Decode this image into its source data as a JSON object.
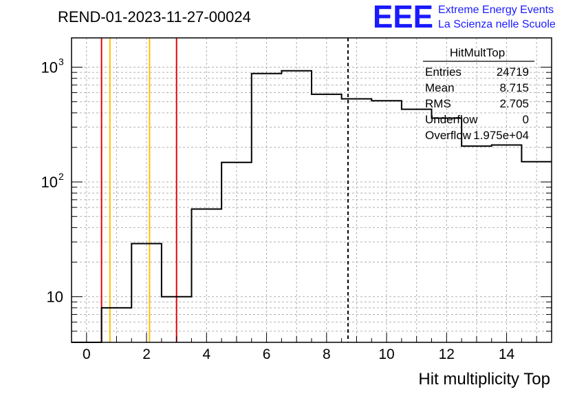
{
  "header": {
    "title": "REND-01-2023-11-27-00024",
    "logo_text": "EEE",
    "logo_line1": "Extreme Energy Events",
    "logo_line2": "La Scienza nelle Scuole"
  },
  "stats_box": {
    "name": "HitMultTop",
    "rows": [
      {
        "label": "Entries",
        "value": "24719"
      },
      {
        "label": "Mean",
        "value": "8.715"
      },
      {
        "label": "RMS",
        "value": "2.705"
      },
      {
        "label": "Underflow",
        "value": "0"
      },
      {
        "label": "Overflow",
        "value": "1.975e+04"
      }
    ]
  },
  "chart_data": {
    "type": "histogram",
    "title": "REND-01-2023-11-27-00024",
    "xlabel": "Hit multiplicity Top",
    "ylabel": "",
    "xlim": [
      -0.5,
      15.5
    ],
    "ylim": [
      4,
      1800
    ],
    "log_y": true,
    "grid": true,
    "bin_edges": [
      -0.5,
      0.5,
      1.5,
      2.5,
      3.5,
      4.5,
      5.5,
      6.5,
      7.5,
      8.5,
      9.5,
      10.5,
      11.5,
      12.5,
      13.5,
      14.5,
      15.5
    ],
    "values": [
      0,
      8,
      29,
      10,
      58,
      148,
      880,
      930,
      580,
      530,
      510,
      430,
      360,
      205,
      210,
      150
    ],
    "x_ticks": [
      0,
      2,
      4,
      6,
      8,
      10,
      12,
      14
    ],
    "x_tick_labels": [
      "0",
      "2",
      "4",
      "6",
      "8",
      "10",
      "12",
      "14"
    ],
    "y_ticks": [
      10,
      100,
      1000
    ],
    "y_tick_labels": [
      {
        "base": "10",
        "exp": ""
      },
      {
        "base": "10",
        "exp": "2"
      },
      {
        "base": "10",
        "exp": "3"
      }
    ],
    "vertical_lines": [
      {
        "x": 0.5,
        "color": "#e60000",
        "style": "solid"
      },
      {
        "x": 0.78,
        "color": "#ffbf00",
        "style": "solid"
      },
      {
        "x": 2.1,
        "color": "#ffbf00",
        "style": "solid"
      },
      {
        "x": 3.0,
        "color": "#e60000",
        "style": "solid"
      },
      {
        "x": 8.715,
        "color": "#000000",
        "style": "dashed"
      }
    ]
  }
}
